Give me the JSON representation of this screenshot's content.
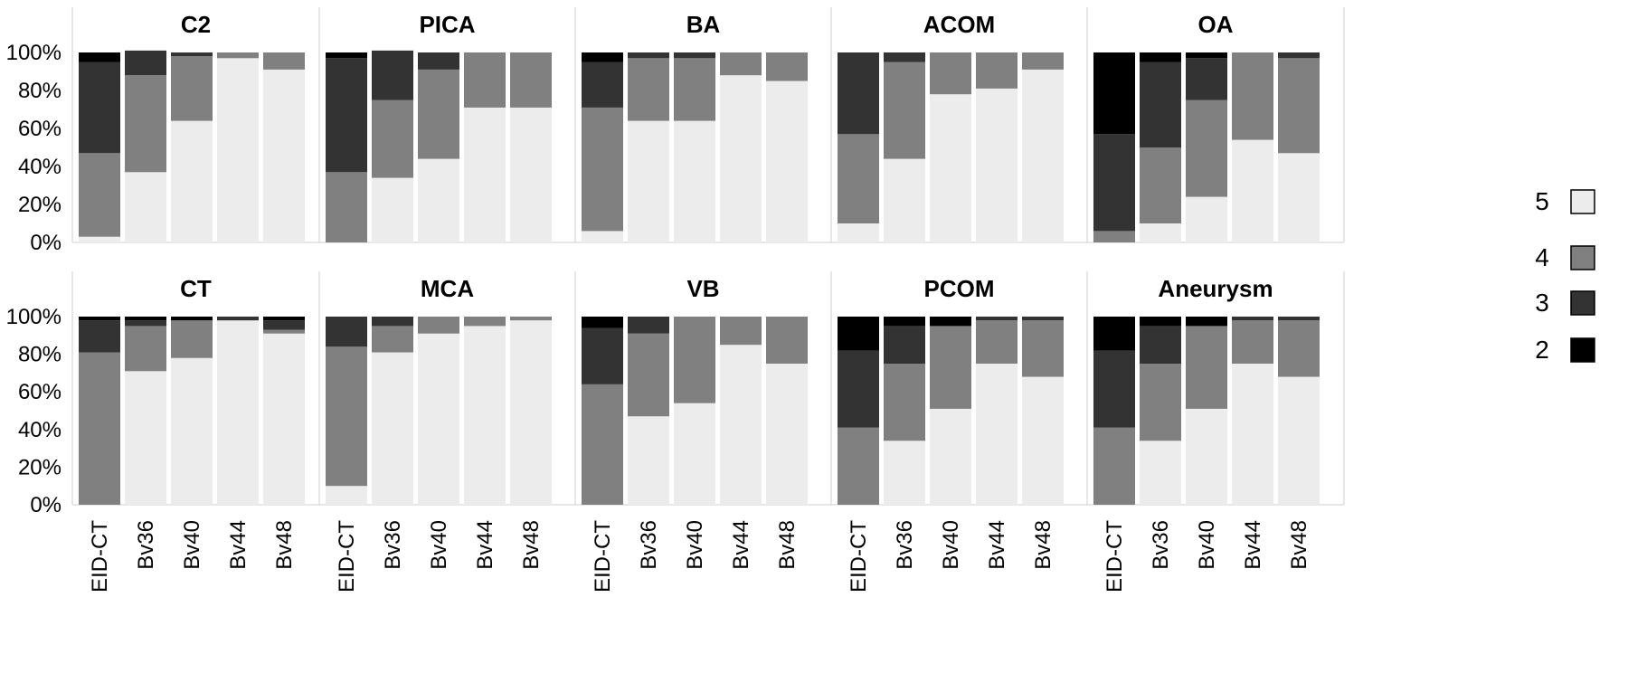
{
  "chart_data": {
    "type": "bar",
    "stacked": true,
    "normalized": true,
    "categories": [
      "EID-CT",
      "Bv36",
      "Bv40",
      "Bv44",
      "Bv48"
    ],
    "y_ticks": [
      "0%",
      "20%",
      "40%",
      "60%",
      "80%",
      "100%"
    ],
    "ylim": [
      0,
      100
    ],
    "grid": false,
    "legend_position": "right",
    "series": [
      {
        "name": "5",
        "color": "#ececec"
      },
      {
        "name": "4",
        "color": "#808080"
      },
      {
        "name": "3",
        "color": "#333333"
      },
      {
        "name": "2",
        "color": "#000000"
      }
    ],
    "legend_order": [
      "5",
      "4",
      "3",
      "2"
    ],
    "panels": [
      {
        "title": "C2",
        "values": [
          [
            3,
            44,
            48,
            5
          ],
          [
            37,
            51,
            13,
            0
          ],
          [
            64,
            34,
            2,
            0
          ],
          [
            97,
            3,
            0,
            0
          ],
          [
            91,
            9,
            0,
            0
          ]
        ]
      },
      {
        "title": "PICA",
        "values": [
          [
            0,
            37,
            60,
            3
          ],
          [
            34,
            41,
            26,
            0
          ],
          [
            44,
            47,
            9,
            0
          ],
          [
            71,
            29,
            0,
            0
          ],
          [
            71,
            29,
            0,
            0
          ]
        ]
      },
      {
        "title": "BA",
        "values": [
          [
            6,
            65,
            24,
            5
          ],
          [
            64,
            33,
            3,
            0
          ],
          [
            64,
            33,
            3,
            0
          ],
          [
            88,
            12,
            0,
            0
          ],
          [
            85,
            15,
            0,
            0
          ]
        ]
      },
      {
        "title": "ACOM",
        "values": [
          [
            10,
            47,
            43,
            0
          ],
          [
            44,
            51,
            5,
            0
          ],
          [
            78,
            22,
            0,
            0
          ],
          [
            81,
            19,
            0,
            0
          ],
          [
            91,
            9,
            0,
            0
          ]
        ]
      },
      {
        "title": "OA",
        "values": [
          [
            0,
            6,
            51,
            43
          ],
          [
            10,
            40,
            45,
            5
          ],
          [
            24,
            51,
            22,
            3
          ],
          [
            54,
            46,
            0,
            0
          ],
          [
            47,
            50,
            3,
            0
          ]
        ]
      },
      {
        "title": "CT",
        "values": [
          [
            0,
            81,
            17,
            2
          ],
          [
            71,
            24,
            3,
            2
          ],
          [
            78,
            20,
            0,
            2
          ],
          [
            98,
            0,
            2,
            0
          ],
          [
            91,
            2,
            5,
            2
          ]
        ]
      },
      {
        "title": "MCA",
        "values": [
          [
            10,
            74,
            16,
            0
          ],
          [
            81,
            14,
            5,
            0
          ],
          [
            91,
            9,
            0,
            0
          ],
          [
            95,
            5,
            0,
            0
          ],
          [
            98,
            2,
            0,
            0
          ]
        ]
      },
      {
        "title": "VB",
        "values": [
          [
            0,
            64,
            30,
            6
          ],
          [
            47,
            44,
            9,
            0
          ],
          [
            54,
            46,
            0,
            0
          ],
          [
            85,
            15,
            0,
            0
          ],
          [
            75,
            25,
            0,
            0
          ]
        ]
      },
      {
        "title": "PCOM",
        "values": [
          [
            0,
            41,
            41,
            18
          ],
          [
            34,
            41,
            20,
            5
          ],
          [
            51,
            44,
            0,
            5
          ],
          [
            75,
            23,
            2,
            0
          ],
          [
            68,
            30,
            2,
            0
          ]
        ]
      },
      {
        "title": "Aneurysm",
        "values": [
          [
            0,
            41,
            41,
            18
          ],
          [
            34,
            41,
            20,
            5
          ],
          [
            51,
            44,
            0,
            5
          ],
          [
            75,
            23,
            2,
            0
          ],
          [
            68,
            30,
            2,
            0
          ]
        ]
      }
    ]
  }
}
